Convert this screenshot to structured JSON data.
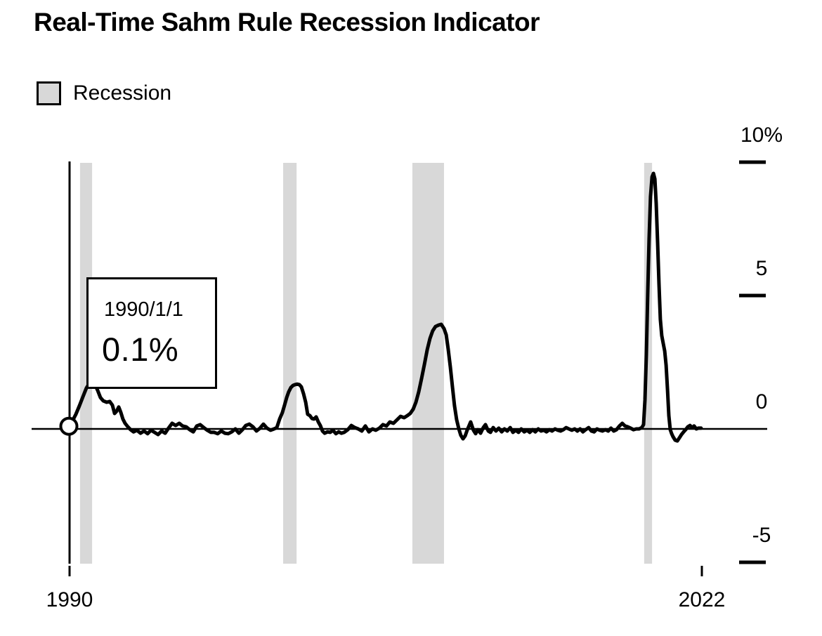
{
  "title": "Real-Time Sahm Rule Recession Indicator",
  "legend": {
    "label": "Recession",
    "swatch_color": "#d8d8d8"
  },
  "tooltip": {
    "date": "1990/1/1",
    "value": "0.1%"
  },
  "colors": {
    "line": "#000000",
    "recession_band": "#d8d8d8",
    "background": "#ffffff",
    "text": "#000000"
  },
  "chart_data": {
    "type": "line",
    "title": "Real-Time Sahm Rule Recession Indicator",
    "unit": "%",
    "grid": false,
    "legend_position": "top-left",
    "x_axis": {
      "ticks": [
        {
          "label": "1990",
          "year": 1990
        },
        {
          "label": "2022",
          "year": 2022
        }
      ]
    },
    "y_axis": {
      "side": "right",
      "range": [
        -5,
        10
      ],
      "ticks": [
        {
          "label": "10%",
          "value": 10
        },
        {
          "label": "5",
          "value": 5
        },
        {
          "label": "0",
          "value": 0
        },
        {
          "label": "-5",
          "value": -5
        }
      ]
    },
    "legend": [
      {
        "label": "Recession",
        "type": "band",
        "color": "#d8d8d8"
      }
    ],
    "recession_bands_years": [
      [
        1990.53,
        1991.14
      ],
      [
        2000.81,
        2001.49
      ],
      [
        2007.35,
        2008.95
      ],
      [
        2019.08,
        2019.48
      ]
    ],
    "highlighted_point": {
      "date": "1990/1/1",
      "value": 0.1,
      "year": 1990.0
    },
    "series": [
      {
        "name": "Real-Time Sahm Rule Recession Indicator",
        "color": "#000000",
        "points": [
          [
            1990.0,
            0.11
          ],
          [
            1990.14,
            0.29
          ],
          [
            1990.32,
            0.55
          ],
          [
            1990.5,
            0.87
          ],
          [
            1990.68,
            1.21
          ],
          [
            1990.85,
            1.53
          ],
          [
            1991.03,
            1.74
          ],
          [
            1991.21,
            1.79
          ],
          [
            1991.42,
            1.45
          ],
          [
            1991.56,
            1.18
          ],
          [
            1991.71,
            1.05
          ],
          [
            1991.88,
            1.0
          ],
          [
            1992.03,
            1.03
          ],
          [
            1992.17,
            0.89
          ],
          [
            1992.28,
            0.58
          ],
          [
            1992.38,
            0.66
          ],
          [
            1992.49,
            0.82
          ],
          [
            1992.6,
            0.61
          ],
          [
            1992.7,
            0.37
          ],
          [
            1992.81,
            0.21
          ],
          [
            1992.95,
            0.08
          ],
          [
            1993.09,
            -0.03
          ],
          [
            1993.24,
            -0.11
          ],
          [
            1993.41,
            -0.05
          ],
          [
            1993.59,
            -0.16
          ],
          [
            1993.77,
            -0.08
          ],
          [
            1993.95,
            -0.18
          ],
          [
            1994.12,
            -0.05
          ],
          [
            1994.3,
            -0.13
          ],
          [
            1994.48,
            -0.21
          ],
          [
            1994.66,
            -0.08
          ],
          [
            1994.84,
            -0.16
          ],
          [
            1995.01,
            0.03
          ],
          [
            1995.19,
            0.21
          ],
          [
            1995.37,
            0.13
          ],
          [
            1995.55,
            0.21
          ],
          [
            1995.72,
            0.11
          ],
          [
            1995.9,
            0.08
          ],
          [
            1996.08,
            -0.03
          ],
          [
            1996.26,
            -0.11
          ],
          [
            1996.44,
            0.11
          ],
          [
            1996.61,
            0.16
          ],
          [
            1996.79,
            0.05
          ],
          [
            1996.97,
            -0.05
          ],
          [
            1997.15,
            -0.13
          ],
          [
            1997.32,
            -0.13
          ],
          [
            1997.5,
            -0.18
          ],
          [
            1997.68,
            -0.08
          ],
          [
            1997.86,
            -0.16
          ],
          [
            1998.03,
            -0.18
          ],
          [
            1998.21,
            -0.11
          ],
          [
            1998.39,
            0.0
          ],
          [
            1998.57,
            -0.16
          ],
          [
            1998.75,
            -0.03
          ],
          [
            1998.92,
            0.13
          ],
          [
            1999.1,
            0.18
          ],
          [
            1999.28,
            0.08
          ],
          [
            1999.46,
            -0.08
          ],
          [
            1999.64,
            0.03
          ],
          [
            1999.81,
            0.18
          ],
          [
            1999.99,
            0.03
          ],
          [
            2000.17,
            -0.05
          ],
          [
            2000.35,
            0.0
          ],
          [
            2000.49,
            0.05
          ],
          [
            2000.63,
            0.37
          ],
          [
            2000.77,
            0.61
          ],
          [
            2000.88,
            0.89
          ],
          [
            2000.99,
            1.18
          ],
          [
            2001.09,
            1.39
          ],
          [
            2001.2,
            1.55
          ],
          [
            2001.31,
            1.63
          ],
          [
            2001.41,
            1.66
          ],
          [
            2001.52,
            1.68
          ],
          [
            2001.63,
            1.66
          ],
          [
            2001.73,
            1.58
          ],
          [
            2001.84,
            1.32
          ],
          [
            2001.95,
            1.0
          ],
          [
            2002.05,
            0.55
          ],
          [
            2002.16,
            0.5
          ],
          [
            2002.27,
            0.39
          ],
          [
            2002.37,
            0.37
          ],
          [
            2002.48,
            0.45
          ],
          [
            2002.59,
            0.26
          ],
          [
            2002.69,
            0.13
          ],
          [
            2002.8,
            -0.08
          ],
          [
            2002.91,
            -0.16
          ],
          [
            2003.05,
            -0.11
          ],
          [
            2003.19,
            -0.13
          ],
          [
            2003.33,
            -0.05
          ],
          [
            2003.48,
            -0.18
          ],
          [
            2003.62,
            -0.11
          ],
          [
            2003.76,
            -0.16
          ],
          [
            2003.9,
            -0.13
          ],
          [
            2004.08,
            -0.03
          ],
          [
            2004.26,
            0.13
          ],
          [
            2004.44,
            0.05
          ],
          [
            2004.61,
            0.0
          ],
          [
            2004.79,
            -0.08
          ],
          [
            2004.97,
            0.11
          ],
          [
            2005.15,
            -0.11
          ],
          [
            2005.33,
            0.0
          ],
          [
            2005.5,
            -0.05
          ],
          [
            2005.68,
            0.03
          ],
          [
            2005.86,
            0.16
          ],
          [
            2006.04,
            0.11
          ],
          [
            2006.21,
            0.26
          ],
          [
            2006.39,
            0.21
          ],
          [
            2006.57,
            0.34
          ],
          [
            2006.75,
            0.47
          ],
          [
            2006.93,
            0.42
          ],
          [
            2007.1,
            0.5
          ],
          [
            2007.24,
            0.58
          ],
          [
            2007.39,
            0.74
          ],
          [
            2007.53,
            1.0
          ],
          [
            2007.67,
            1.39
          ],
          [
            2007.81,
            1.87
          ],
          [
            2007.96,
            2.42
          ],
          [
            2008.1,
            2.97
          ],
          [
            2008.24,
            3.39
          ],
          [
            2008.38,
            3.68
          ],
          [
            2008.52,
            3.84
          ],
          [
            2008.67,
            3.89
          ],
          [
            2008.81,
            3.92
          ],
          [
            2008.95,
            3.76
          ],
          [
            2009.06,
            3.53
          ],
          [
            2009.16,
            3.0
          ],
          [
            2009.27,
            2.32
          ],
          [
            2009.38,
            1.55
          ],
          [
            2009.48,
            0.87
          ],
          [
            2009.59,
            0.34
          ],
          [
            2009.7,
            0.0
          ],
          [
            2009.8,
            -0.24
          ],
          [
            2009.91,
            -0.37
          ],
          [
            2010.02,
            -0.26
          ],
          [
            2010.12,
            -0.05
          ],
          [
            2010.3,
            0.26
          ],
          [
            2010.44,
            -0.05
          ],
          [
            2010.55,
            -0.18
          ],
          [
            2010.66,
            -0.03
          ],
          [
            2010.8,
            -0.16
          ],
          [
            2010.94,
            0.05
          ],
          [
            2011.05,
            0.16
          ],
          [
            2011.19,
            -0.08
          ],
          [
            2011.3,
            -0.13
          ],
          [
            2011.44,
            0.05
          ],
          [
            2011.58,
            -0.08
          ],
          [
            2011.72,
            0.03
          ],
          [
            2011.87,
            -0.11
          ],
          [
            2012.01,
            0.0
          ],
          [
            2012.15,
            -0.08
          ],
          [
            2012.3,
            0.05
          ],
          [
            2012.44,
            -0.13
          ],
          [
            2012.58,
            -0.05
          ],
          [
            2012.72,
            -0.13
          ],
          [
            2012.86,
            0.0
          ],
          [
            2013.01,
            -0.11
          ],
          [
            2013.15,
            -0.05
          ],
          [
            2013.29,
            -0.13
          ],
          [
            2013.43,
            -0.03
          ],
          [
            2013.57,
            -0.11
          ],
          [
            2013.72,
            0.0
          ],
          [
            2013.86,
            -0.08
          ],
          [
            2014.0,
            -0.05
          ],
          [
            2014.14,
            -0.11
          ],
          [
            2014.28,
            -0.03
          ],
          [
            2014.42,
            -0.08
          ],
          [
            2014.57,
            0.0
          ],
          [
            2014.71,
            -0.05
          ],
          [
            2014.85,
            -0.08
          ],
          [
            2014.99,
            -0.03
          ],
          [
            2015.13,
            0.05
          ],
          [
            2015.27,
            0.0
          ],
          [
            2015.42,
            -0.05
          ],
          [
            2015.56,
            0.0
          ],
          [
            2015.7,
            -0.08
          ],
          [
            2015.84,
            0.0
          ],
          [
            2015.98,
            -0.11
          ],
          [
            2016.12,
            -0.03
          ],
          [
            2016.27,
            0.05
          ],
          [
            2016.41,
            -0.08
          ],
          [
            2016.55,
            -0.11
          ],
          [
            2016.69,
            0.0
          ],
          [
            2016.83,
            -0.05
          ],
          [
            2016.97,
            -0.08
          ],
          [
            2017.12,
            -0.03
          ],
          [
            2017.26,
            -0.08
          ],
          [
            2017.4,
            0.03
          ],
          [
            2017.54,
            -0.08
          ],
          [
            2017.68,
            -0.03
          ],
          [
            2017.83,
            0.11
          ],
          [
            2017.97,
            0.21
          ],
          [
            2018.11,
            0.11
          ],
          [
            2018.25,
            0.08
          ],
          [
            2018.39,
            0.03
          ],
          [
            2018.54,
            -0.03
          ],
          [
            2018.68,
            0.0
          ],
          [
            2018.82,
            0.0
          ],
          [
            2018.96,
            0.05
          ],
          [
            2019.05,
            0.16
          ],
          [
            2019.12,
            1.08
          ],
          [
            2019.19,
            2.79
          ],
          [
            2019.26,
            5.03
          ],
          [
            2019.33,
            7.13
          ],
          [
            2019.4,
            8.71
          ],
          [
            2019.48,
            9.45
          ],
          [
            2019.55,
            9.58
          ],
          [
            2019.62,
            9.37
          ],
          [
            2019.69,
            8.45
          ],
          [
            2019.76,
            7.0
          ],
          [
            2019.83,
            5.42
          ],
          [
            2019.9,
            4.11
          ],
          [
            2019.97,
            3.5
          ],
          [
            2020.05,
            3.18
          ],
          [
            2020.12,
            2.92
          ],
          [
            2020.19,
            2.39
          ],
          [
            2020.26,
            1.47
          ],
          [
            2020.33,
            0.5
          ],
          [
            2020.4,
            -0.03
          ],
          [
            2020.47,
            -0.18
          ],
          [
            2020.54,
            -0.29
          ],
          [
            2020.65,
            -0.42
          ],
          [
            2020.76,
            -0.45
          ],
          [
            2020.86,
            -0.34
          ],
          [
            2020.97,
            -0.21
          ],
          [
            2021.08,
            -0.11
          ],
          [
            2021.18,
            -0.03
          ],
          [
            2021.29,
            0.08
          ],
          [
            2021.4,
            0.13
          ],
          [
            2021.5,
            0.05
          ],
          [
            2021.61,
            0.11
          ],
          [
            2021.72,
            0.0
          ],
          [
            2021.82,
            0.03
          ],
          [
            2021.93,
            0.03
          ],
          [
            2021.96,
            0.03
          ]
        ]
      }
    ]
  }
}
